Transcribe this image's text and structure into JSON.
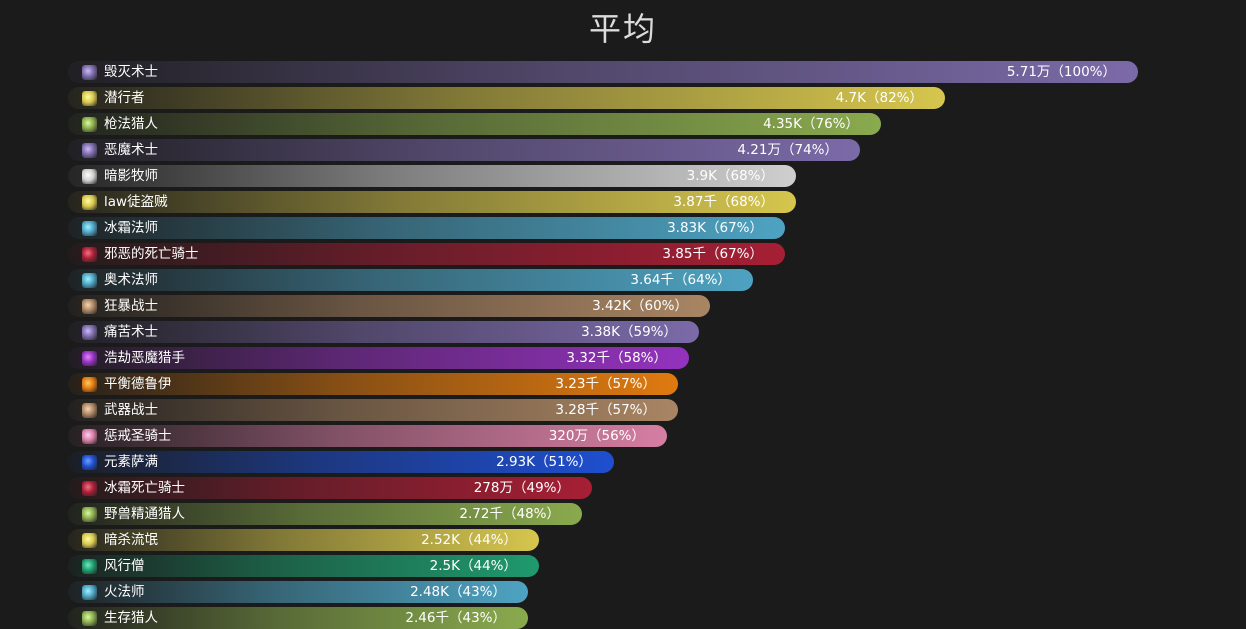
{
  "title": "平均",
  "chart_data": {
    "type": "bar",
    "orientation": "horizontal",
    "title": "平均",
    "max_value": 5.71,
    "bars": [
      {
        "name": "毁灭术士",
        "label": "5.71万（100%）",
        "percent": 100,
        "color": "#7b6aa8",
        "icon": "destruction-icon"
      },
      {
        "name": "潜行者",
        "label": "4.7K（82%）",
        "percent": 82,
        "color": "#d6c64e",
        "icon": "rogue-icon"
      },
      {
        "name": "枪法猎人",
        "label": "4.35K（76%）",
        "percent": 76,
        "color": "#8aaa4e",
        "icon": "marksman-icon"
      },
      {
        "name": "恶魔术士",
        "label": "4.21万（74%）",
        "percent": 74,
        "color": "#7b6aa8",
        "icon": "demonology-icon"
      },
      {
        "name": "暗影牧师",
        "label": "3.9K（68%）",
        "percent": 68,
        "color": "#cfcfcf",
        "icon": "shadow-priest-icon"
      },
      {
        "name": "law徒盗贼",
        "label": "3.87千（68%）",
        "percent": 68,
        "color": "#d6c64e",
        "icon": "outlaw-icon"
      },
      {
        "name": "冰霜法师",
        "label": "3.83K（67%）",
        "percent": 67,
        "color": "#4ea3c2",
        "icon": "frost-mage-icon"
      },
      {
        "name": "邪恶的死亡骑士",
        "label": "3.85千（67%）",
        "percent": 67,
        "color": "#a61f35",
        "icon": "unholy-icon"
      },
      {
        "name": "奥术法师",
        "label": "3.64千（64%）",
        "percent": 64,
        "color": "#4ea3c2",
        "icon": "arcane-icon"
      },
      {
        "name": "狂暴战士",
        "label": "3.42K（60%）",
        "percent": 60,
        "color": "#a98563",
        "icon": "fury-icon"
      },
      {
        "name": "痛苦术士",
        "label": "3.38K（59%）",
        "percent": 59,
        "color": "#7b6aa8",
        "icon": "affliction-icon"
      },
      {
        "name": "浩劫恶魔猎手",
        "label": "3.32千（58%）",
        "percent": 58,
        "color": "#9432be",
        "icon": "havoc-icon"
      },
      {
        "name": "平衡德鲁伊",
        "label": "3.23千（57%）",
        "percent": 57,
        "color": "#e07a10",
        "icon": "balance-icon"
      },
      {
        "name": "武器战士",
        "label": "3.28千（57%）",
        "percent": 57,
        "color": "#a98563",
        "icon": "arms-icon"
      },
      {
        "name": "惩戒圣骑士",
        "label": "320万（56%）",
        "percent": 56,
        "color": "#d67ea3",
        "icon": "retribution-icon"
      },
      {
        "name": "元素萨满",
        "label": "2.93K（51%）",
        "percent": 51,
        "color": "#1f4fd0",
        "icon": "elemental-icon"
      },
      {
        "name": "冰霜死亡骑士",
        "label": "278万（49%）",
        "percent": 49,
        "color": "#a61f35",
        "icon": "frost-dk-icon"
      },
      {
        "name": "野兽精通猎人",
        "label": "2.72千（48%）",
        "percent": 48,
        "color": "#8aaa4e",
        "icon": "beast-mastery-icon"
      },
      {
        "name": "暗杀流氓",
        "label": "2.52K（44%）",
        "percent": 44,
        "color": "#d6c64e",
        "icon": "assassination-icon"
      },
      {
        "name": "风行僧",
        "label": "2.5K（44%）",
        "percent": 44,
        "color": "#1f9a6e",
        "icon": "windwalker-icon"
      },
      {
        "name": "火法师",
        "label": "2.48K（43%）",
        "percent": 43,
        "color": "#4ea3c2",
        "icon": "fire-mage-icon"
      },
      {
        "name": "生存猎人",
        "label": "2.46千（43%）",
        "percent": 43,
        "color": "#8aaa4e",
        "icon": "survival-icon"
      }
    ]
  }
}
